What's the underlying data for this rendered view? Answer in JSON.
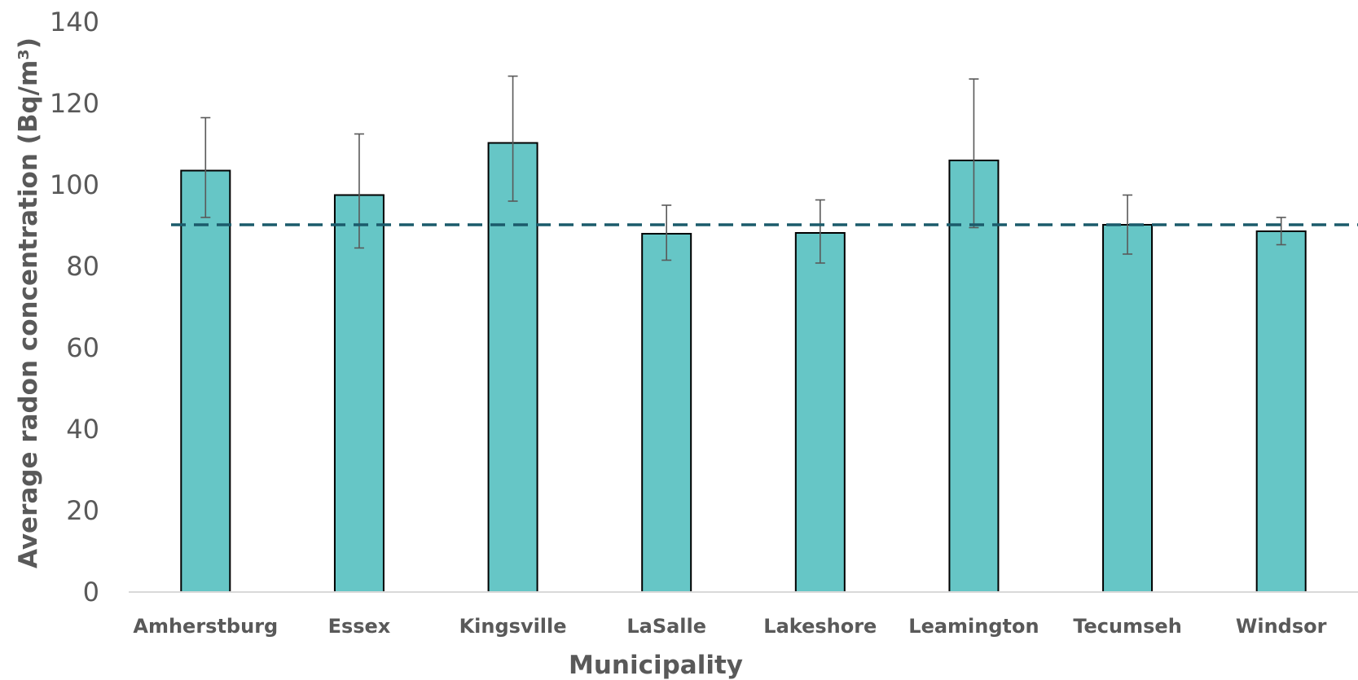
{
  "chart_data": {
    "type": "bar",
    "title": "",
    "xlabel": "Municipality",
    "ylabel": "Average radon concentration (Bq/m³)",
    "categories": [
      "Amherstburg",
      "Essex",
      "Kingsville",
      "LaSalle",
      "Lakeshore",
      "Leamington",
      "Tecumseh",
      "Windsor"
    ],
    "series": [
      {
        "values": [
          103.5,
          97.5,
          110.3,
          88.0,
          88.2,
          106.0,
          90.2,
          88.6
        ],
        "error_low": [
          92.0,
          84.5,
          96.0,
          81.5,
          80.8,
          89.5,
          83.0,
          85.3
        ],
        "error_high": [
          116.5,
          112.5,
          126.7,
          95.0,
          96.3,
          126.0,
          97.5,
          92.0
        ]
      }
    ],
    "reference_line": {
      "value": 90.2,
      "style": "dashed"
    },
    "ylim": [
      0,
      140
    ],
    "yticks": [
      0,
      20,
      40,
      60,
      80,
      100,
      120,
      140
    ],
    "grid": false,
    "legend": "none",
    "colors": {
      "bar_fill": "#66C6C6",
      "bar_stroke": "#000000",
      "error_bar": "#595959",
      "reference_line": "#1B5B6B",
      "axis_line": "#D9D9D9",
      "text": "#595959"
    }
  }
}
